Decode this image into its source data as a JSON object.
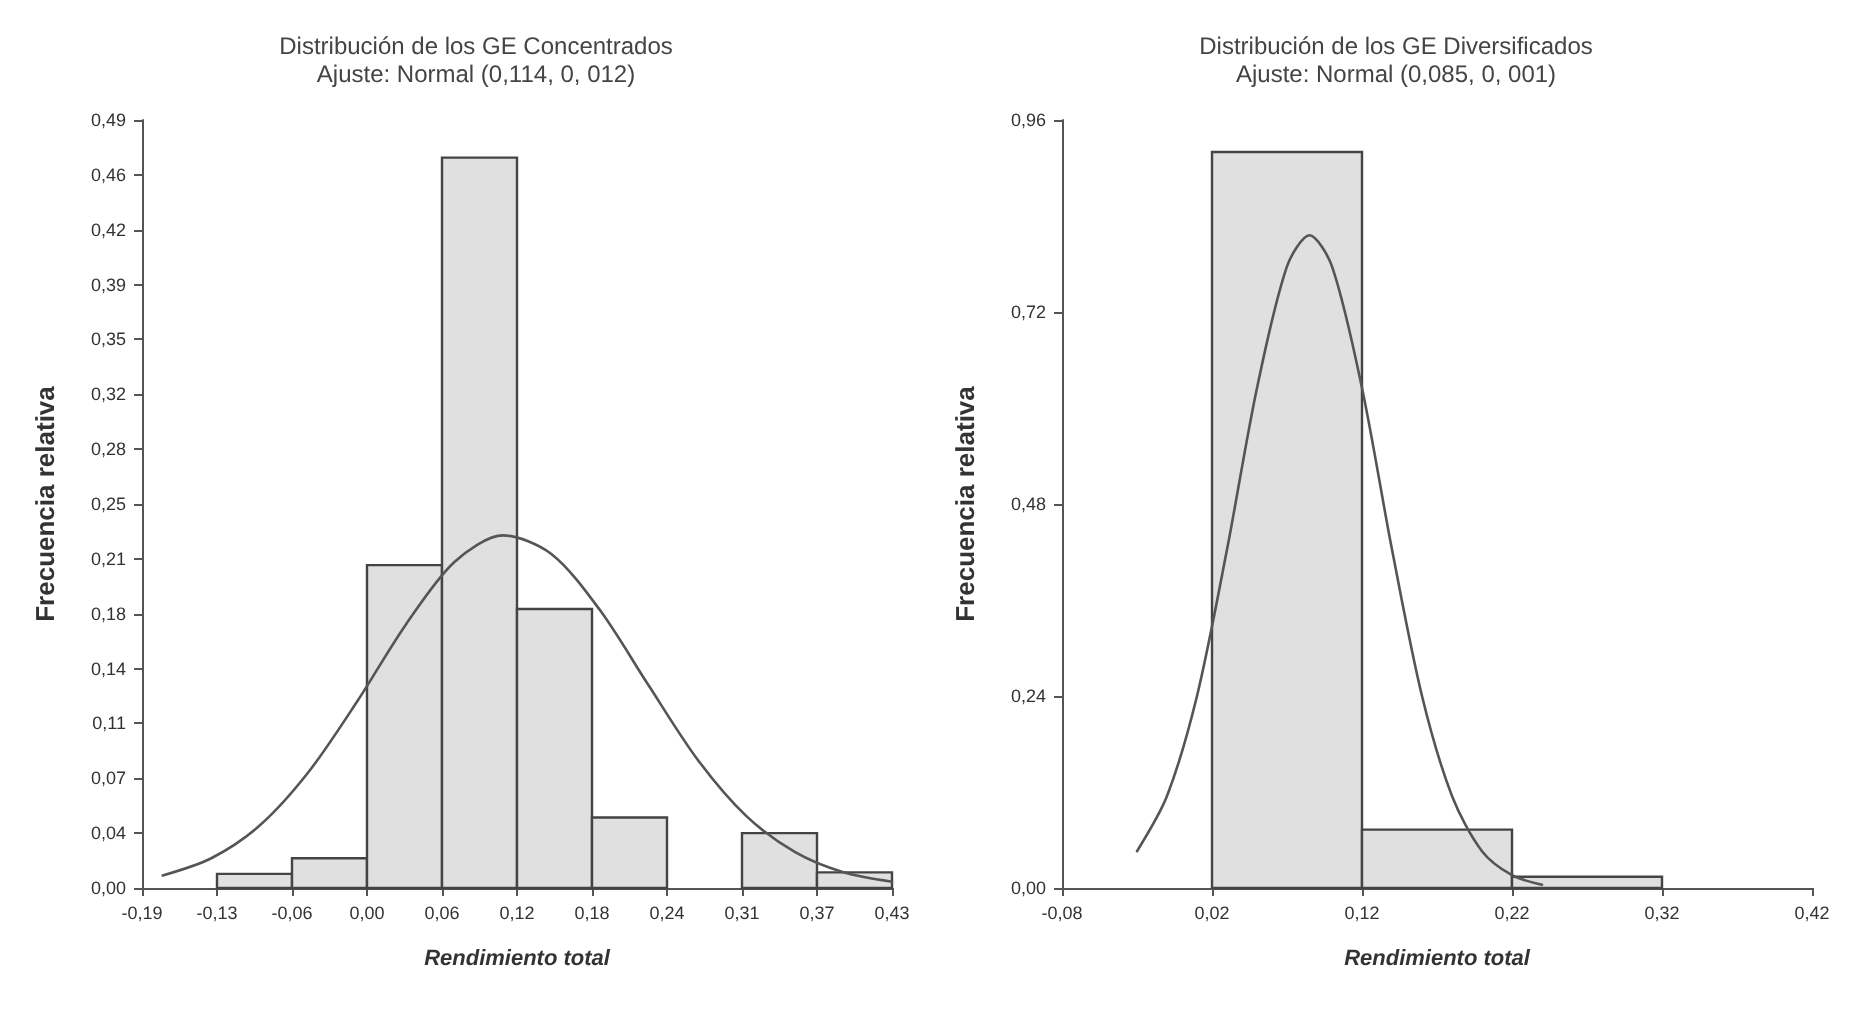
{
  "chart_data": [
    {
      "type": "histogram",
      "title": "Distribución de los GE Concentrados",
      "subtitle": "Ajuste: Normal (0,114, 0, 012)",
      "xlabel": "Rendimiento total",
      "ylabel": "Frecuencia relativa",
      "xlim": [
        -0.187,
        0.43
      ],
      "ylim": [
        0,
        0.49
      ],
      "xticks": [
        {
          "value": -0.187,
          "label": "-0,19"
        },
        {
          "value": -0.1253,
          "label": "-0,13"
        },
        {
          "value": -0.0636,
          "label": "-0,06"
        },
        {
          "value": -0.0019,
          "label": "0,00"
        },
        {
          "value": 0.0598,
          "label": "0,06"
        },
        {
          "value": 0.1215,
          "label": "0,12"
        },
        {
          "value": 0.1832,
          "label": "0,18"
        },
        {
          "value": 0.2449,
          "label": "0,24"
        },
        {
          "value": 0.3066,
          "label": "0,31"
        },
        {
          "value": 0.3683,
          "label": "0,37"
        },
        {
          "value": 0.43,
          "label": "0,43"
        }
      ],
      "yticks": [
        {
          "value": 0,
          "label": "0,00"
        },
        {
          "value": 0.035,
          "label": "0,04"
        },
        {
          "value": 0.07,
          "label": "0,07"
        },
        {
          "value": 0.105,
          "label": "0,11"
        },
        {
          "value": 0.14,
          "label": "0,14"
        },
        {
          "value": 0.175,
          "label": "0,18"
        },
        {
          "value": 0.21,
          "label": "0,21"
        },
        {
          "value": 0.245,
          "label": "0,25"
        },
        {
          "value": 0.28,
          "label": "0,28"
        },
        {
          "value": 0.315,
          "label": "0,32"
        },
        {
          "value": 0.35,
          "label": "0,35"
        },
        {
          "value": 0.385,
          "label": "0,39"
        },
        {
          "value": 0.42,
          "label": "0,42"
        },
        {
          "value": 0.455,
          "label": "0,46"
        },
        {
          "value": 0.49,
          "label": "0,49"
        }
      ],
      "grid": false,
      "marker": "none",
      "line_style": "solid",
      "series": [
        {
          "color": "#e0e0e0",
          "bins": [
            -0.1253,
            -0.0636,
            -0.0019,
            0.0598,
            0.1215,
            0.1832,
            0.2449,
            0.3066,
            0.3683,
            0.43
          ],
          "values": [
            0.009,
            0.019,
            0.206,
            0.466,
            0.178,
            0.045,
            0,
            0.035,
            0.01
          ]
        },
        {
          "type": "line",
          "color": "#555555",
          "x": [
            -0.17,
            -0.13,
            -0.09,
            -0.05,
            -0.01,
            0.03,
            0.07,
            0.11,
            0.15,
            0.19,
            0.23,
            0.27,
            0.31,
            0.35,
            0.39,
            0.43
          ],
          "values": [
            0.008,
            0.019,
            0.04,
            0.074,
            0.119,
            0.168,
            0.208,
            0.225,
            0.213,
            0.177,
            0.129,
            0.082,
            0.046,
            0.023,
            0.01,
            0.004
          ]
        }
      ]
    },
    {
      "type": "histogram",
      "title": "Distribución de los GE Diversificados",
      "subtitle": "Ajuste: Normal (0,085, 0, 001)",
      "xlabel": "Rendimiento total",
      "ylabel": "Frecuencia relativa",
      "xlim": [
        -0.08,
        0.42
      ],
      "ylim": [
        0,
        0.96
      ],
      "xticks": [
        {
          "value": -0.08,
          "label": "-0,08"
        },
        {
          "value": 0.02,
          "label": "0,02"
        },
        {
          "value": 0.12,
          "label": "0,12"
        },
        {
          "value": 0.22,
          "label": "0,22"
        },
        {
          "value": 0.32,
          "label": "0,32"
        },
        {
          "value": 0.42,
          "label": "0,42"
        }
      ],
      "yticks": [
        {
          "value": 0,
          "label": "0,00"
        },
        {
          "value": 0.24,
          "label": "0,24"
        },
        {
          "value": 0.48,
          "label": "0,48"
        },
        {
          "value": 0.72,
          "label": "0,72"
        },
        {
          "value": 0.96,
          "label": "0,96"
        }
      ],
      "grid": false,
      "marker": "none",
      "line_style": "solid",
      "series": [
        {
          "color": "#e0e0e0",
          "bins": [
            0.02,
            0.12,
            0.22,
            0.32
          ],
          "values": [
            0.92,
            0.073,
            0.014
          ]
        },
        {
          "type": "line",
          "color": "#555555",
          "x": [
            -0.03,
            -0.01,
            0.01,
            0.03,
            0.05,
            0.07,
            0.085,
            0.1,
            0.12,
            0.14,
            0.16,
            0.18,
            0.2,
            0.22,
            0.24
          ],
          "values": [
            0.046,
            0.115,
            0.24,
            0.423,
            0.625,
            0.777,
            0.816,
            0.777,
            0.625,
            0.423,
            0.24,
            0.115,
            0.046,
            0.016,
            0.004
          ]
        }
      ]
    }
  ]
}
